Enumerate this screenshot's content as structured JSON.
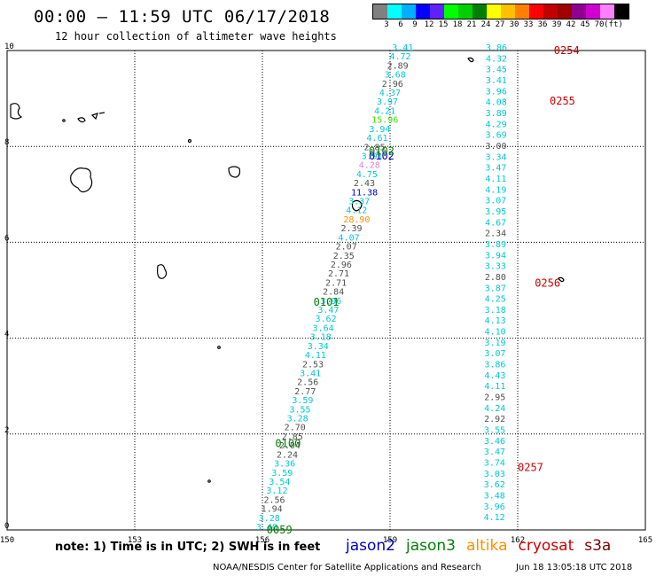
{
  "header": {
    "title": "00:00 – 11:59 UTC 06/17/2018",
    "subtitle": "12 hour collection of altimeter wave heights"
  },
  "colorbar": {
    "colors": [
      "#808080",
      "#00ffff",
      "#00b0ff",
      "#0000ff",
      "#6020ff",
      "#00ff00",
      "#00d000",
      "#008000",
      "#ffff00",
      "#ffc000",
      "#ff8000",
      "#ff0000",
      "#c00000",
      "#a00000",
      "#900090",
      "#d000d0",
      "#ff80ff",
      "#000000"
    ],
    "labels": [
      "3",
      "6",
      "9",
      "12",
      "15",
      "18",
      "21",
      "24",
      "27",
      "30",
      "33",
      "36",
      "39",
      "42",
      "45",
      "70",
      "(ft)"
    ]
  },
  "axes": {
    "x_ticks": [
      "150",
      "153",
      "156",
      "159",
      "162",
      "165"
    ],
    "y_ticks": [
      "0",
      "2",
      "4",
      "6",
      "8",
      "10"
    ],
    "x_values": [
      150,
      153,
      156,
      159,
      162,
      165
    ],
    "y_values": [
      0,
      2,
      4,
      6,
      8,
      10
    ],
    "xlim": [
      150,
      165
    ],
    "ylim": [
      0,
      10
    ]
  },
  "passes": [
    {
      "id": "0059",
      "color": "#008000",
      "lon": 156.1,
      "lat": 0.0
    },
    {
      "id": "0100",
      "color": "#008000",
      "lon": 156.3,
      "lat": 1.8
    },
    {
      "id": "0101",
      "color": "#008000",
      "lon": 157.2,
      "lat": 4.75
    },
    {
      "id": "0102",
      "color": "#0000c0",
      "lon": 158.5,
      "lat": 7.8
    },
    {
      "id": "0102",
      "color": "#008000",
      "lon": 158.5,
      "lat": 7.9
    },
    {
      "id": "0254",
      "color": "#d00000",
      "lon": 162.85,
      "lat": 10.0
    },
    {
      "id": "0255",
      "color": "#d00000",
      "lon": 162.75,
      "lat": 8.95
    },
    {
      "id": "0256",
      "color": "#d00000",
      "lon": 162.4,
      "lat": 5.15
    },
    {
      "id": "0257",
      "color": "#d00000",
      "lon": 162.0,
      "lat": 1.3
    }
  ],
  "track_left": [
    {
      "v": "3.40",
      "c": "#00c8d0"
    },
    {
      "v": "3.28",
      "c": "#00c8d0"
    },
    {
      "v": "1.94",
      "c": "#505050"
    },
    {
      "v": "2.56",
      "c": "#505050"
    },
    {
      "v": "3.12",
      "c": "#00c8d0"
    },
    {
      "v": "3.54",
      "c": "#00c8d0"
    },
    {
      "v": "3.59",
      "c": "#00c8d0"
    },
    {
      "v": "3.36",
      "c": "#00c8d0"
    },
    {
      "v": "2.24",
      "c": "#505050"
    },
    {
      "v": "2.04",
      "c": "#505050"
    },
    {
      "v": "2.85",
      "c": "#505050"
    },
    {
      "v": "2.70",
      "c": "#505050"
    },
    {
      "v": "3.28",
      "c": "#00c8d0"
    },
    {
      "v": "3.55",
      "c": "#00c8d0"
    },
    {
      "v": "3.59",
      "c": "#00c8d0"
    },
    {
      "v": "2.77",
      "c": "#505050"
    },
    {
      "v": "2.56",
      "c": "#505050"
    },
    {
      "v": "3.41",
      "c": "#00c8d0"
    },
    {
      "v": "2.53",
      "c": "#505050"
    },
    {
      "v": "4.11",
      "c": "#00c8d0"
    },
    {
      "v": "3.34",
      "c": "#00c8d0"
    },
    {
      "v": "3.18",
      "c": "#00c8d0"
    },
    {
      "v": "3.64",
      "c": "#00c8d0"
    },
    {
      "v": "3.62",
      "c": "#00c8d0"
    },
    {
      "v": "3.47",
      "c": "#00c8d0"
    },
    {
      "v": "3.96",
      "c": "#00c8d0"
    },
    {
      "v": "2.84",
      "c": "#505050"
    },
    {
      "v": "2.71",
      "c": "#505050"
    },
    {
      "v": "2.71",
      "c": "#505050"
    },
    {
      "v": "2.96",
      "c": "#505050"
    },
    {
      "v": "2.35",
      "c": "#505050"
    },
    {
      "v": "2.07",
      "c": "#505050"
    },
    {
      "v": "4.07",
      "c": "#00c8d0"
    },
    {
      "v": "2.39",
      "c": "#505050"
    },
    {
      "v": "28.90",
      "c": "#ff9000"
    },
    {
      "v": "4.12",
      "c": "#00c8d0"
    },
    {
      "v": "3.37",
      "c": "#00c8d0"
    },
    {
      "v": "11.38",
      "c": "#0000c0"
    },
    {
      "v": "2.43",
      "c": "#505050"
    },
    {
      "v": "4.75",
      "c": "#00c8d0"
    },
    {
      "v": "4.28",
      "c": "#e080e0"
    },
    {
      "v": "3.91",
      "c": "#00c8d0"
    },
    {
      "v": "2.85",
      "c": "#505050"
    },
    {
      "v": "4.61",
      "c": "#00c8d0"
    },
    {
      "v": "3.94",
      "c": "#00c8d0"
    },
    {
      "v": "15.96",
      "c": "#40e000"
    },
    {
      "v": "4.21",
      "c": "#00c8d0"
    },
    {
      "v": "3.97",
      "c": "#00c8d0"
    },
    {
      "v": "4.37",
      "c": "#00c8d0"
    },
    {
      "v": "2.96",
      "c": "#505050"
    },
    {
      "v": "3.68",
      "c": "#00c8d0"
    },
    {
      "v": "2.89",
      "c": "#505050"
    },
    {
      "v": "4.72",
      "c": "#00c8d0"
    },
    {
      "v": "3.41",
      "c": "#00c8d0"
    }
  ],
  "track_right": [
    {
      "v": "4.12",
      "c": "#00c8d0"
    },
    {
      "v": "3.96",
      "c": "#00c8d0"
    },
    {
      "v": "3.48",
      "c": "#00c8d0"
    },
    {
      "v": "3.62",
      "c": "#00c8d0"
    },
    {
      "v": "3.03",
      "c": "#00c8d0"
    },
    {
      "v": "3.74",
      "c": "#00c8d0"
    },
    {
      "v": "3.47",
      "c": "#00c8d0"
    },
    {
      "v": "3.46",
      "c": "#00c8d0"
    },
    {
      "v": "3.55",
      "c": "#00c8d0"
    },
    {
      "v": "2.92",
      "c": "#505050"
    },
    {
      "v": "4.24",
      "c": "#00c8d0"
    },
    {
      "v": "2.95",
      "c": "#505050"
    },
    {
      "v": "4.11",
      "c": "#00c8d0"
    },
    {
      "v": "4.43",
      "c": "#00c8d0"
    },
    {
      "v": "3.86",
      "c": "#00c8d0"
    },
    {
      "v": "3.07",
      "c": "#00c8d0"
    },
    {
      "v": "3.19",
      "c": "#00c8d0"
    },
    {
      "v": "4.10",
      "c": "#00c8d0"
    },
    {
      "v": "4.13",
      "c": "#00c8d0"
    },
    {
      "v": "3.18",
      "c": "#00c8d0"
    },
    {
      "v": "4.25",
      "c": "#00c8d0"
    },
    {
      "v": "3.87",
      "c": "#00c8d0"
    },
    {
      "v": "2.80",
      "c": "#505050"
    },
    {
      "v": "3.33",
      "c": "#00c8d0"
    },
    {
      "v": "3.94",
      "c": "#00c8d0"
    },
    {
      "v": "3.89",
      "c": "#00c8d0"
    },
    {
      "v": "2.34",
      "c": "#505050"
    },
    {
      "v": "4.67",
      "c": "#00c8d0"
    },
    {
      "v": "3.95",
      "c": "#00c8d0"
    },
    {
      "v": "3.07",
      "c": "#00c8d0"
    },
    {
      "v": "4.19",
      "c": "#00c8d0"
    },
    {
      "v": "4.11",
      "c": "#00c8d0"
    },
    {
      "v": "3.47",
      "c": "#00c8d0"
    },
    {
      "v": "3.34",
      "c": "#00c8d0"
    },
    {
      "v": "3.00",
      "c": "#505050"
    },
    {
      "v": "3.69",
      "c": "#00c8d0"
    },
    {
      "v": "4.29",
      "c": "#00c8d0"
    },
    {
      "v": "3.89",
      "c": "#00c8d0"
    },
    {
      "v": "4.08",
      "c": "#00c8d0"
    },
    {
      "v": "3.96",
      "c": "#00c8d0"
    },
    {
      "v": "3.41",
      "c": "#00c8d0"
    },
    {
      "v": "3.45",
      "c": "#00c8d0"
    },
    {
      "v": "4.32",
      "c": "#00c8d0"
    },
    {
      "v": "3.86",
      "c": "#00c8d0"
    }
  ],
  "footer": {
    "note": "note: 1) Time is in UTC; 2) SWH is in feet",
    "credit": "NOAA/NESDIS Center for Satellite Applications and Research",
    "timestamp": "Jun 18 13:05:18 UTC 2018"
  },
  "legend": [
    {
      "label": "jason2",
      "color": "#0000c0"
    },
    {
      "label": "jason3",
      "color": "#008000"
    },
    {
      "label": "altika",
      "color": "#ff9000"
    },
    {
      "label": "cryosat",
      "color": "#d00000"
    },
    {
      "label": "s3a",
      "color": "#800000"
    }
  ]
}
